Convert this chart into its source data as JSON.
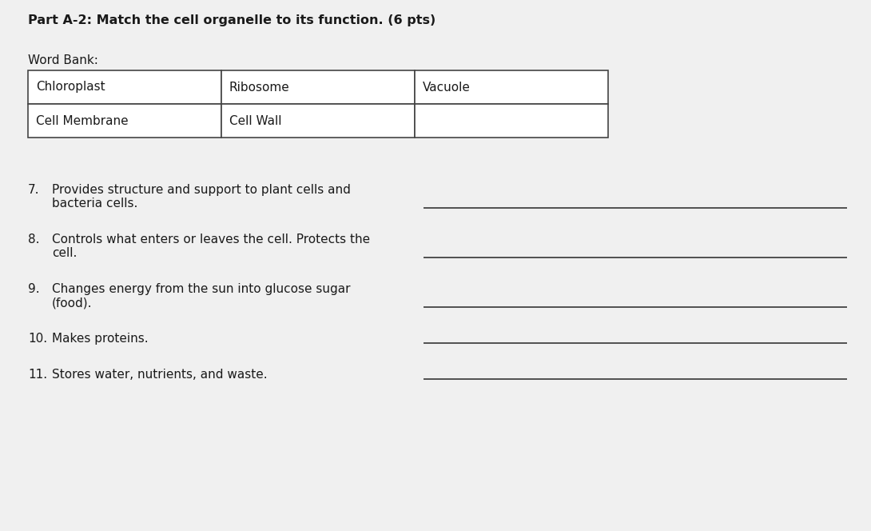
{
  "title": "Part A-2: Match the cell organelle to its function. (6 pts)",
  "word_bank_label": "Word Bank:",
  "table_row1": [
    "Chloroplast",
    "Ribosome",
    "Vacuole"
  ],
  "table_row2": [
    "Cell Membrane",
    "Cell Wall",
    ""
  ],
  "questions": [
    {
      "num": "7.",
      "text": "Provides structure and support to plant cells and\nbacteria cells."
    },
    {
      "num": "8.",
      "text": "Controls what enters or leaves the cell. Protects the\ncell."
    },
    {
      "num": "9.",
      "text": "Changes energy from the sun into glucose sugar\n(food)."
    },
    {
      "num": "10.",
      "text": "Makes proteins."
    },
    {
      "num": "11.",
      "text": "Stores water, nutrients, and waste."
    }
  ],
  "background_color": "#f0f0f0",
  "text_color": "#1a1a1a",
  "table_border_color": "#444444",
  "title_fontsize": 11.5,
  "body_fontsize": 11.0,
  "word_bank_fontsize": 11.0,
  "line_color": "#444444",
  "fig_width": 10.9,
  "fig_height": 6.64,
  "dpi": 100
}
